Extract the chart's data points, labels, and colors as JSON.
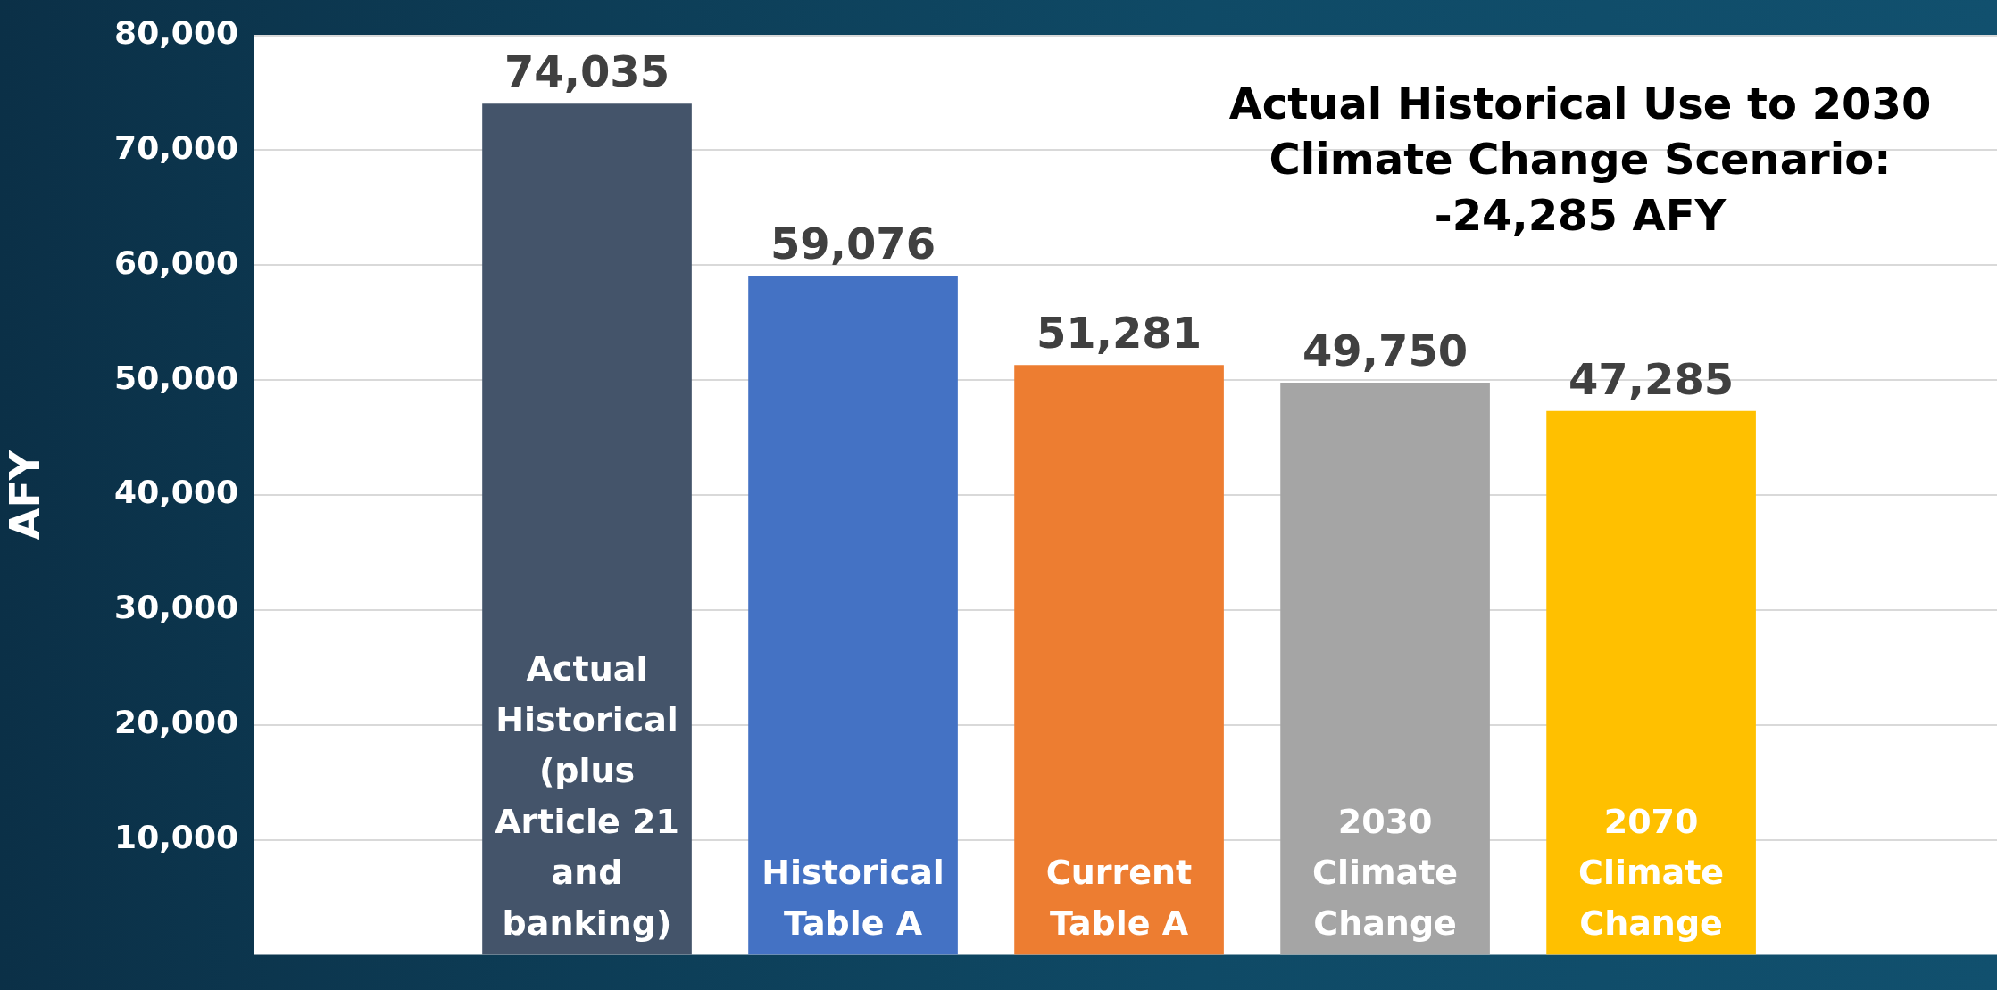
{
  "chart_data": {
    "type": "bar",
    "title": "Actual Historical Use to 2030 Climate Change Scenario: -24,285 AFY",
    "ylabel": "AFY",
    "categories": [
      "Actual Historical (plus Article 21 and banking)",
      "Historical Table A",
      "Current Table A",
      "2030 Climate Change",
      "2070 Climate Change"
    ],
    "values": [
      74035,
      59076,
      51281,
      49750,
      47285
    ],
    "colors": [
      "#44546a",
      "#4472c4",
      "#ed7d31",
      "#a5a5a5",
      "#ffc000"
    ],
    "value_labels": [
      "74,035",
      "59,076",
      "51,281",
      "49,750",
      "47,285"
    ],
    "ylim": [
      0,
      80000
    ],
    "yticks": [
      {
        "value": 10000,
        "label": "10,000"
      },
      {
        "value": 20000,
        "label": "20,000"
      },
      {
        "value": 30000,
        "label": "30,000"
      },
      {
        "value": 40000,
        "label": "40,000"
      },
      {
        "value": 50000,
        "label": "50,000"
      },
      {
        "value": 60000,
        "label": "60,000"
      },
      {
        "value": 70000,
        "label": "70,000"
      },
      {
        "value": 80000,
        "label": "80,000"
      }
    ],
    "grid": "y",
    "legend": false
  }
}
